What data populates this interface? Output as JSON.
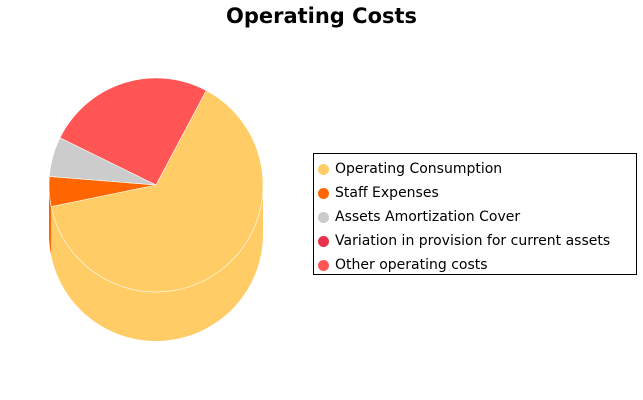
{
  "chart_data": {
    "type": "pie",
    "title": "Operating Costs",
    "style": "3d",
    "legend_position": "right",
    "slices": [
      {
        "label": "Operating Consumption",
        "value": 64,
        "color": "#FFCC66"
      },
      {
        "label": "Staff Expenses",
        "value": 4.5,
        "color": "#FF6600"
      },
      {
        "label": "Assets Amortization Cover",
        "value": 6,
        "color": "#CCCCCC"
      },
      {
        "label": "Variation in provision for current assets",
        "value": 0,
        "color": "#E8314A"
      },
      {
        "label": "Other operating costs",
        "value": 25.5,
        "color": "#FF5555"
      }
    ]
  }
}
